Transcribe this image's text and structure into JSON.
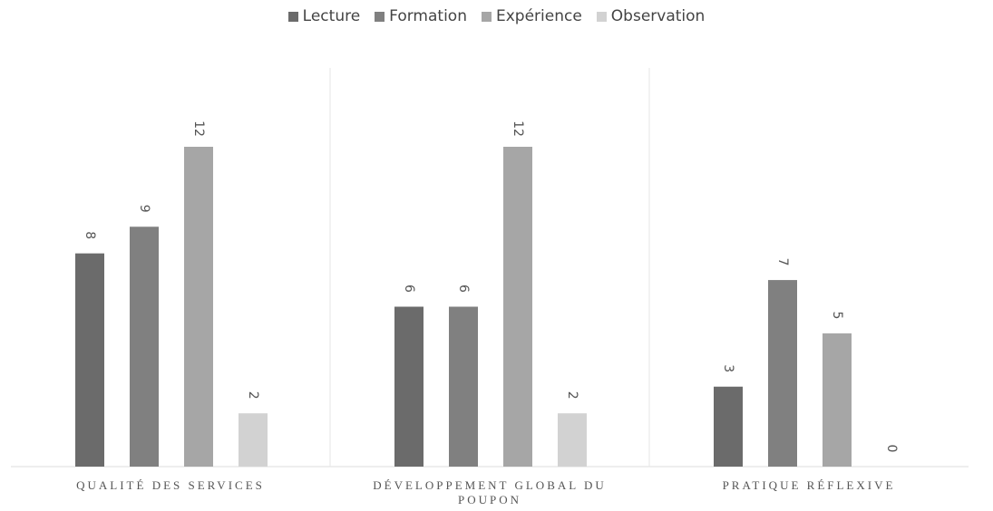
{
  "chart_data": {
    "type": "bar",
    "categories": [
      "QUALITÉ DES SERVICES",
      "DÉVELOPPEMENT GLOBAL DU POUPON",
      "PRATIQUE RÉFLEXIVE"
    ],
    "series": [
      {
        "name": "Lecture",
        "color": "#6b6b6b",
        "values": [
          8,
          6,
          3
        ]
      },
      {
        "name": "Formation",
        "color": "#808080",
        "values": [
          9,
          6,
          7
        ]
      },
      {
        "name": "Expérience",
        "color": "#a6a6a6",
        "values": [
          12,
          12,
          5
        ]
      },
      {
        "name": "Observation",
        "color": "#d2d2d2",
        "values": [
          2,
          2,
          0
        ]
      }
    ],
    "ylim": [
      0,
      12
    ],
    "legend": "top",
    "data_labels": true
  }
}
